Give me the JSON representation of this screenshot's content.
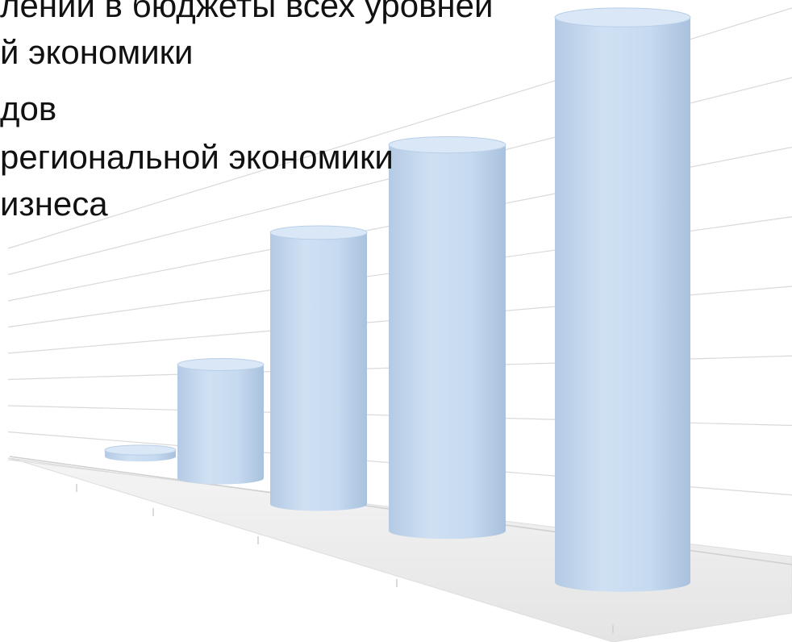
{
  "bullets": [
    "лений в бюджеты всех уровней",
    "й экономики",
    "дов",
    " региональной экономики",
    "изнеса"
  ],
  "colors": {
    "bar_fill": "#c5d9ef",
    "bar_top": "#d9e7f6",
    "grid": "#d9d9d9",
    "floor": "#e9e9e9",
    "text": "#111111"
  },
  "chart_data": {
    "type": "bar",
    "style": "3d-cylinder",
    "grid": true,
    "categories": [
      "",
      "",
      "",
      "",
      ""
    ],
    "values": [
      0.5,
      7.5,
      16.5,
      23,
      34
    ],
    "ylim": [
      0,
      35
    ]
  }
}
